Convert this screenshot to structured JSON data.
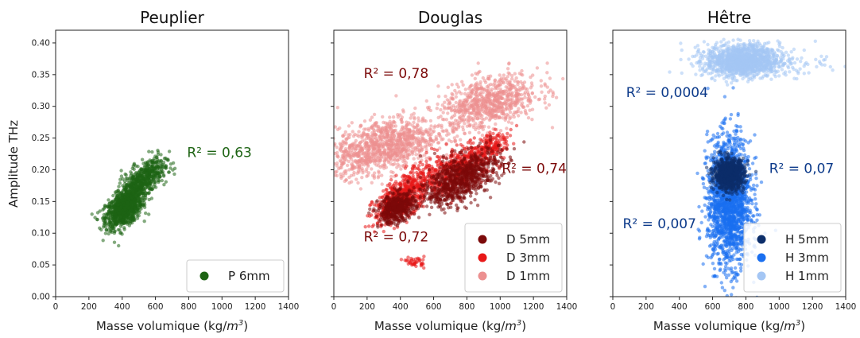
{
  "figure": {
    "ylabel": "Amplitude  THz",
    "xlabel_main": "Masse volumique (kg/",
    "xlabel_m": "m",
    "xlabel_exp": "3",
    "xlabel_close": ")"
  },
  "chart_data": [
    {
      "type": "scatter",
      "title": "Peuplier",
      "xlabel": "Masse volumique (kg/m3)",
      "ylabel": "Amplitude  THz",
      "xlim": [
        0,
        1400
      ],
      "ylim": [
        0,
        0.42
      ],
      "xticks": [
        "0",
        "200",
        "400",
        "600",
        "800",
        "1000",
        "1200",
        "1400"
      ],
      "yticks": [
        "0.00",
        "0.05",
        "0.10",
        "0.15",
        "0.20",
        "0.25",
        "0.30",
        "0.35",
        "0.40"
      ],
      "grid": false,
      "legend_position": "bottom-right",
      "series": [
        {
          "name": "P 6mm",
          "color": "#1e6414",
          "clusters": [
            {
              "x_range": [
                300,
                520
              ],
              "y_range": [
                0.11,
                0.17
              ],
              "density": "high"
            },
            {
              "x_range": [
                380,
                650
              ],
              "y_range": [
                0.15,
                0.225
              ],
              "density": "medium"
            }
          ],
          "trend": "positive"
        }
      ],
      "annotations": [
        {
          "text": "R² = 0,63",
          "color": "#1e6414"
        }
      ]
    },
    {
      "type": "scatter",
      "title": "Douglas",
      "xlabel": "Masse volumique (kg/m3)",
      "xlim": [
        0,
        1400
      ],
      "ylim": [
        0,
        0.42
      ],
      "xticks": [
        "0",
        "200",
        "400",
        "600",
        "800",
        "1000",
        "1200",
        "1400"
      ],
      "grid": false,
      "legend_position": "bottom-right",
      "series": [
        {
          "name": "D 5mm",
          "color": "#7c0a0a",
          "clusters": [
            {
              "x_range": [
                250,
                500
              ],
              "y_range": [
                0.115,
                0.17
              ],
              "density": "high"
            },
            {
              "x_range": [
                500,
                1000
              ],
              "y_range": [
                0.145,
                0.23
              ],
              "density": "high"
            }
          ]
        },
        {
          "name": "D 3mm",
          "color": "#e81818",
          "clusters": [
            {
              "x_range": [
                230,
                1050
              ],
              "y_range": [
                0.12,
                0.26
              ],
              "density": "high"
            },
            {
              "x_range": [
                400,
                560
              ],
              "y_range": [
                0.045,
                0.065
              ],
              "density": "low"
            }
          ]
        },
        {
          "name": "D 1mm",
          "color": "#ec9090",
          "clusters": [
            {
              "x_range": [
                20,
                700
              ],
              "y_range": [
                0.18,
                0.3
              ],
              "density": "medium"
            },
            {
              "x_range": [
                600,
                1250
              ],
              "y_range": [
                0.25,
                0.375
              ],
              "density": "medium"
            }
          ]
        }
      ],
      "annotations": [
        {
          "text": "R² = 0,78",
          "color": "#7c0a0a"
        },
        {
          "text": "R² = 0,74",
          "color": "#7c0a0a"
        },
        {
          "text": "R² = 0,72",
          "color": "#7c0a0a"
        }
      ]
    },
    {
      "type": "scatter",
      "title": "Hêtre",
      "xlabel": "Masse volumique (kg/m3)",
      "xlim": [
        0,
        1400
      ],
      "ylim": [
        0,
        0.42
      ],
      "xticks": [
        "0",
        "200",
        "400",
        "600",
        "800",
        "1000",
        "1200",
        "1400"
      ],
      "grid": false,
      "legend_position": "bottom-right",
      "series": [
        {
          "name": "H 5mm",
          "color": "#0c2e6a",
          "clusters": [
            {
              "x_range": [
                600,
                800
              ],
              "y_range": [
                0.17,
                0.215
              ],
              "density": "high"
            }
          ]
        },
        {
          "name": "H 3mm",
          "color": "#1a6ff0",
          "clusters": [
            {
              "x_range": [
                520,
                900
              ],
              "y_range": [
                0.01,
                0.285
              ],
              "density": "high"
            }
          ]
        },
        {
          "name": "H 1mm",
          "color": "#a4c6f4",
          "clusters": [
            {
              "x_range": [
                380,
                1320
              ],
              "y_range": [
                0.335,
                0.42
              ],
              "density": "high"
            }
          ]
        }
      ],
      "annotations": [
        {
          "text": "R² = 0,0004",
          "color": "#0c3a8a"
        },
        {
          "text": "R² = 0,07",
          "color": "#0c3a8a"
        },
        {
          "text": "R² = 0,007",
          "color": "#0c3a8a"
        }
      ]
    }
  ]
}
